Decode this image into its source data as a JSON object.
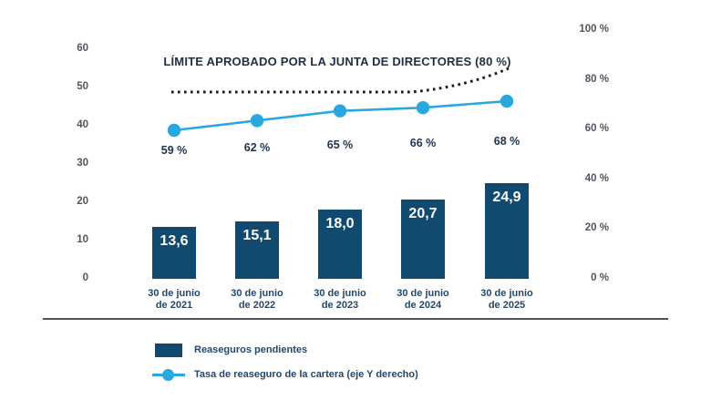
{
  "chart_data": {
    "type": "bar",
    "title": "LÍMITE APROBADO POR LA JUNTA DE DIRECTORES (80 %)",
    "categories": [
      {
        "line1": "30 de junio",
        "line2": "de 2021"
      },
      {
        "line1": "30 de junio",
        "line2": "de 2022"
      },
      {
        "line1": "30 de junio",
        "line2": "de 2023"
      },
      {
        "line1": "30 de junio",
        "line2": "de 2024"
      },
      {
        "line1": "30 de junio",
        "line2": "de 2025"
      }
    ],
    "series": [
      {
        "name": "Reaseguros pendientes",
        "type": "bar",
        "axis": "left",
        "color": "#114a6e",
        "values": [
          13.6,
          15.1,
          18.0,
          20.7,
          24.9
        ],
        "value_labels": [
          "13,6",
          "15,1",
          "18,0",
          "20,7",
          "24,9"
        ]
      },
      {
        "name": "Tasa de reaseguro de la cartera (eje Y derecho)",
        "type": "line",
        "axis": "right",
        "color": "#29a8e0",
        "values": [
          59,
          62,
          65,
          66,
          68
        ],
        "value_labels": [
          "59 %",
          "62 %",
          "65 %",
          "66 %",
          "68 %"
        ]
      }
    ],
    "limit_line": {
      "label": "LÍMITE APROBADO POR LA JUNTA DE DIRECTORES (80 %)",
      "value_pct": 80,
      "style": "dotted",
      "color": "#1a1a1a"
    },
    "left_axis": {
      "min": 0,
      "max": 60,
      "tick_values": [
        0,
        10,
        20,
        30,
        40,
        50,
        60
      ],
      "tick_labels": [
        "0",
        "10",
        "20",
        "30",
        "40",
        "50",
        "60"
      ]
    },
    "right_axis": {
      "min": 0,
      "max": 100,
      "tick_values": [
        0,
        20,
        40,
        60,
        80,
        100
      ],
      "tick_labels": [
        "0 %",
        "20 %",
        "40 %",
        "60 %",
        "80 %",
        "100 %"
      ]
    },
    "legend": [
      {
        "swatch": "bar-square",
        "label": "Reaseguros pendientes",
        "color": "#114a6e"
      },
      {
        "swatch": "line-dot",
        "label": "Tasa de reaseguro de la cartera (eje Y derecho)",
        "color": "#29a8e0"
      }
    ],
    "grid": "off",
    "legend_position": "bottom-left"
  },
  "colors": {
    "bar": "#114a6e",
    "rate_line": "#29a8e0",
    "limit_line": "#1a1a1a",
    "title_text": "#222f43",
    "axis_text": "#4e565f",
    "label_text": "#24486b",
    "bar_value_text": "#ffffff",
    "divider": "#515356",
    "background": "#ffffff"
  }
}
